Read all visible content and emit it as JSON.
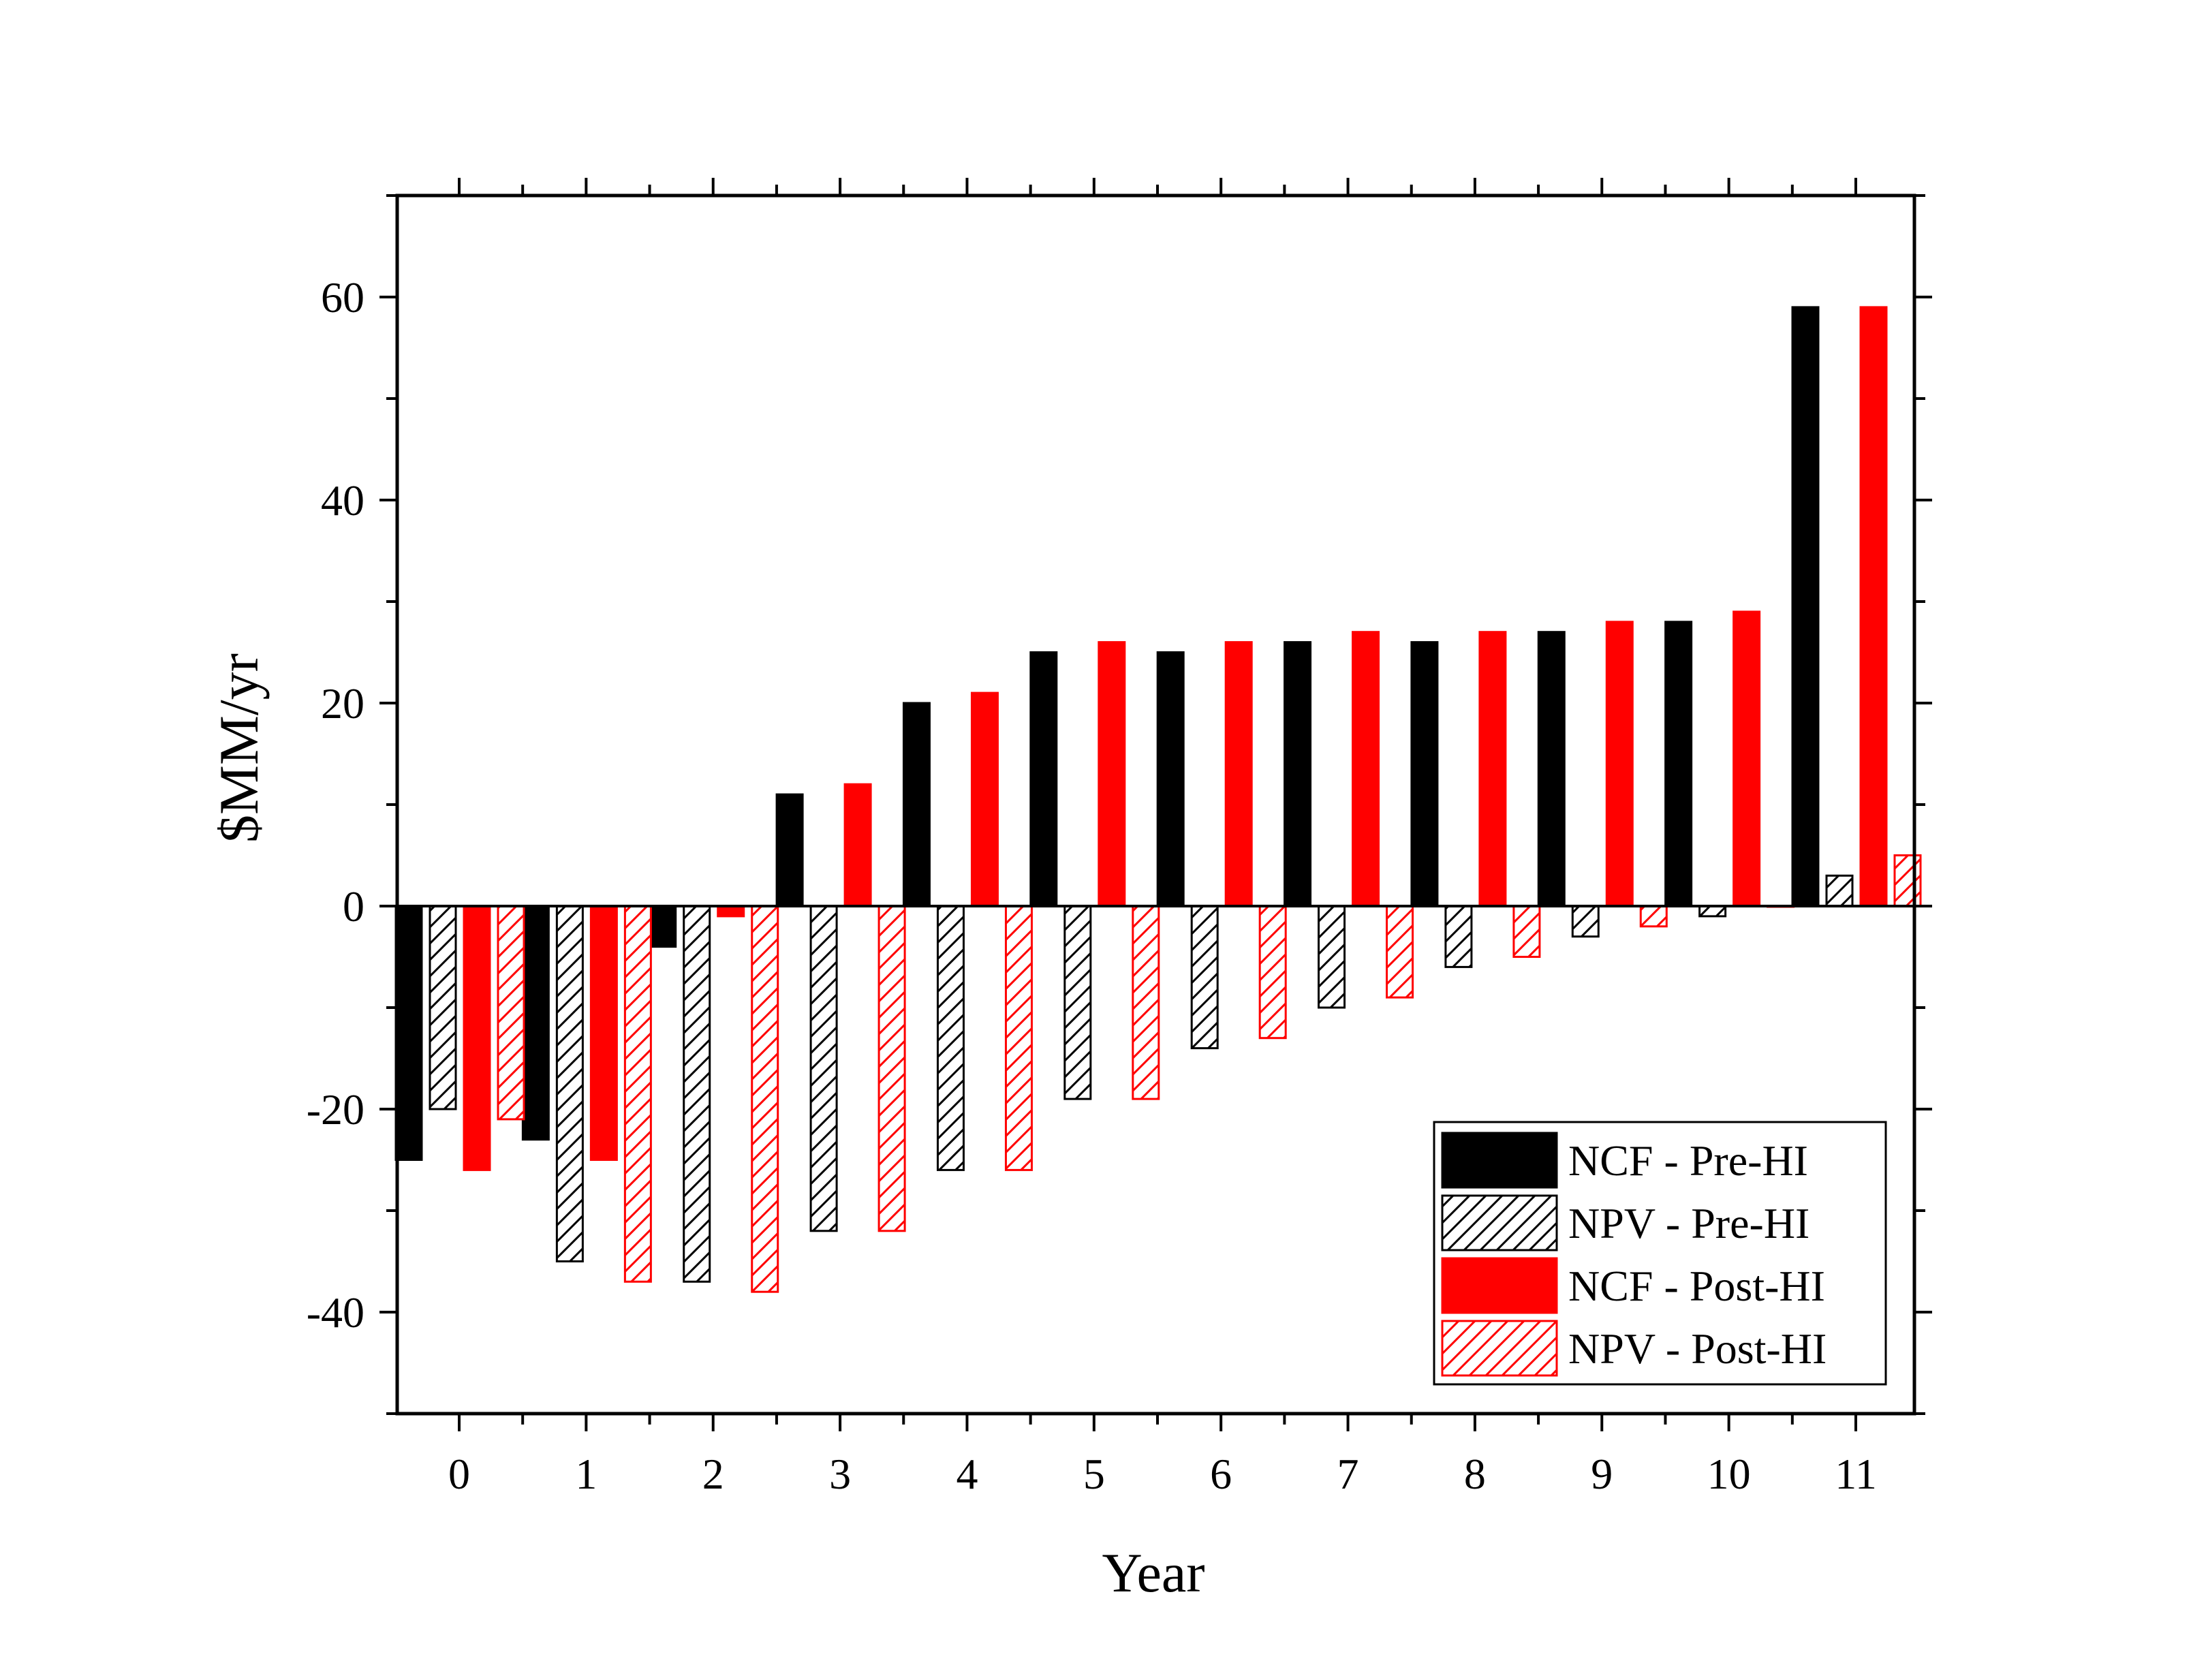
{
  "chart_data": {
    "type": "bar",
    "xlabel": "Year",
    "ylabel": "$MM/yr",
    "ylim": [
      -50,
      70
    ],
    "y_ticks": [
      -40,
      -20,
      0,
      20,
      40,
      60
    ],
    "categories": [
      "0",
      "1",
      "2",
      "3",
      "4",
      "5",
      "6",
      "7",
      "8",
      "9",
      "10",
      "11"
    ],
    "legend_position": "bottom-right",
    "series": [
      {
        "name": "NCF - Pre-HI",
        "color": "#000000",
        "fill": "solid",
        "values": [
          -25,
          -23,
          -4,
          11,
          20,
          25,
          25,
          26,
          26,
          27,
          28,
          59
        ]
      },
      {
        "name": "NPV - Pre-HI",
        "color": "#000000",
        "fill": "hatched",
        "values": [
          -20,
          -35,
          -37,
          -32,
          -26,
          -19,
          -14,
          -10,
          -6,
          -3,
          -1,
          3
        ]
      },
      {
        "name": "NCF - Post-HI",
        "color": "#ff0000",
        "fill": "solid",
        "values": [
          -26,
          -25,
          -1,
          12,
          21,
          26,
          26,
          27,
          27,
          28,
          29,
          59
        ]
      },
      {
        "name": "NPV - Post-HI",
        "color": "#ff0000",
        "fill": "hatched",
        "values": [
          -21,
          -37,
          -38,
          -32,
          -26,
          -19,
          -13,
          -9,
          -5,
          -2,
          0,
          5
        ]
      }
    ]
  }
}
